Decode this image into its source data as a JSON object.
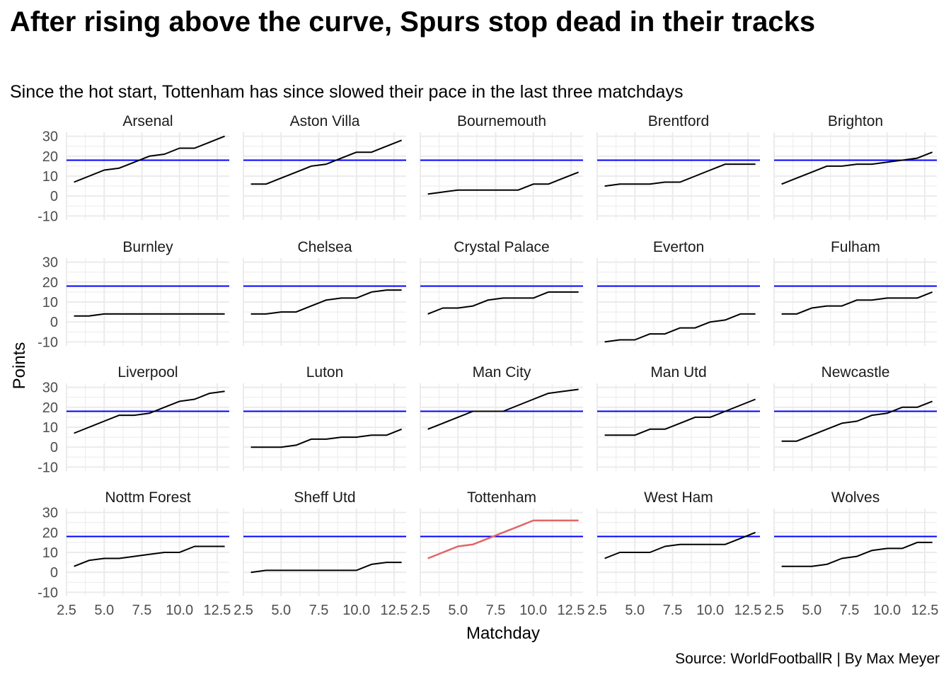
{
  "title": "After rising above the curve, Spurs stop dead in their tracks",
  "subtitle": "Since the hot start, Tottenham has since slowed their pace in the last three matchdays",
  "caption": "Source: WorldFootballR | By Max Meyer",
  "colors": {
    "line": "#000000",
    "highlight": "#e06666",
    "reference": "#0000ff",
    "grid": "#ebebeb",
    "axis_text": "#4d4d4d"
  },
  "chart_data": {
    "type": "line",
    "facet": true,
    "xlabel": "Matchday",
    "ylabel": "Points",
    "xlim": [
      2.5,
      13.3
    ],
    "ylim": [
      -12,
      32
    ],
    "x_ticks": [
      2.5,
      5.0,
      7.5,
      10.0,
      12.5
    ],
    "x_tick_labels": [
      "2.5",
      "5.0",
      "7.5",
      "10.0",
      "12.5"
    ],
    "y_ticks": [
      -10,
      0,
      10,
      20,
      30
    ],
    "y_tick_labels": [
      "-10",
      "0",
      "10",
      "20",
      "30"
    ],
    "reference_line": 18,
    "highlight_team": "Tottenham",
    "x": [
      3,
      4,
      5,
      6,
      7,
      8,
      9,
      10,
      11,
      12,
      13
    ],
    "series": [
      {
        "name": "Arsenal",
        "values": [
          7,
          10,
          13,
          14,
          17,
          20,
          21,
          24,
          24,
          27,
          30
        ]
      },
      {
        "name": "Aston Villa",
        "values": [
          6,
          6,
          9,
          12,
          15,
          16,
          19,
          22,
          22,
          25,
          28
        ]
      },
      {
        "name": "Bournemouth",
        "values": [
          1,
          2,
          3,
          3,
          3,
          3,
          3,
          6,
          6,
          9,
          12
        ]
      },
      {
        "name": "Brentford",
        "values": [
          5,
          6,
          6,
          6,
          7,
          7,
          10,
          13,
          16,
          16,
          16
        ]
      },
      {
        "name": "Brighton",
        "values": [
          6,
          9,
          12,
          15,
          15,
          16,
          16,
          17,
          18,
          19,
          22
        ]
      },
      {
        "name": "Burnley",
        "values": [
          3,
          3,
          4,
          4,
          4,
          4,
          4,
          4,
          4,
          4,
          4
        ]
      },
      {
        "name": "Chelsea",
        "values": [
          4,
          4,
          5,
          5,
          8,
          11,
          12,
          12,
          15,
          16,
          16
        ]
      },
      {
        "name": "Crystal Palace",
        "values": [
          4,
          7,
          7,
          8,
          11,
          12,
          12,
          12,
          15,
          15,
          15
        ]
      },
      {
        "name": "Everton",
        "values": [
          -10,
          -9,
          -9,
          -6,
          -6,
          -3,
          -3,
          0,
          1,
          4,
          4
        ]
      },
      {
        "name": "Fulham",
        "values": [
          4,
          4,
          7,
          8,
          8,
          11,
          11,
          12,
          12,
          12,
          15
        ]
      },
      {
        "name": "Liverpool",
        "values": [
          7,
          10,
          13,
          16,
          16,
          17,
          20,
          23,
          24,
          27,
          28
        ]
      },
      {
        "name": "Luton",
        "values": [
          0,
          0,
          0,
          1,
          4,
          4,
          5,
          5,
          6,
          6,
          9
        ]
      },
      {
        "name": "Man City",
        "values": [
          9,
          12,
          15,
          18,
          18,
          18,
          21,
          24,
          27,
          28,
          29
        ]
      },
      {
        "name": "Man Utd",
        "values": [
          6,
          6,
          6,
          9,
          9,
          12,
          15,
          15,
          18,
          21,
          24
        ]
      },
      {
        "name": "Newcastle",
        "values": [
          3,
          3,
          6,
          9,
          12,
          13,
          16,
          17,
          20,
          20,
          23
        ]
      },
      {
        "name": "Nottm Forest",
        "values": [
          3,
          6,
          7,
          7,
          8,
          9,
          10,
          10,
          13,
          13,
          13
        ]
      },
      {
        "name": "Sheff Utd",
        "values": [
          0,
          1,
          1,
          1,
          1,
          1,
          1,
          1,
          4,
          5,
          5
        ]
      },
      {
        "name": "Tottenham",
        "values": [
          7,
          10,
          13,
          14,
          17,
          20,
          23,
          26,
          26,
          26,
          26
        ]
      },
      {
        "name": "West Ham",
        "values": [
          7,
          10,
          10,
          10,
          13,
          14,
          14,
          14,
          14,
          17,
          20
        ]
      },
      {
        "name": "Wolves",
        "values": [
          3,
          3,
          3,
          4,
          7,
          8,
          11,
          12,
          12,
          15,
          15
        ]
      }
    ]
  }
}
